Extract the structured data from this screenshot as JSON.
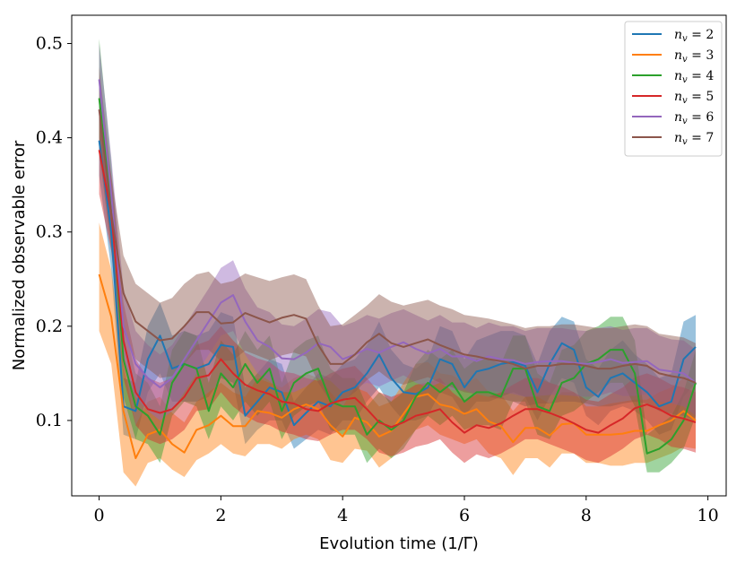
{
  "chart_data": {
    "type": "line",
    "xlabel": "Evolution time (1/Γ̅)",
    "ylabel": "Normalized observable error",
    "xlim": [
      -0.45,
      10.3
    ],
    "ylim": [
      0.02,
      0.53
    ],
    "xticks": [
      0,
      2,
      4,
      6,
      8,
      10
    ],
    "xtick_labels": [
      "0",
      "2",
      "4",
      "6",
      "8",
      "10"
    ],
    "yticks": [
      0.1,
      0.2,
      0.3,
      0.4,
      0.5
    ],
    "ytick_labels": [
      "0.1",
      "0.2",
      "0.3",
      "0.4",
      "0.5"
    ],
    "grid": false,
    "legend_position": "top-right",
    "x": [
      0,
      0.2,
      0.4,
      0.6,
      0.8,
      1.0,
      1.2,
      1.4,
      1.6,
      1.8,
      2.0,
      2.2,
      2.4,
      2.6,
      2.8,
      3.0,
      3.2,
      3.4,
      3.6,
      3.8,
      4.0,
      4.2,
      4.4,
      4.6,
      4.8,
      5.0,
      5.2,
      5.4,
      5.6,
      5.8,
      6.0,
      6.2,
      6.4,
      6.6,
      6.8,
      7.0,
      7.2,
      7.4,
      7.6,
      7.8,
      8.0,
      8.2,
      8.4,
      8.6,
      8.8,
      9.0,
      9.2,
      9.4,
      9.6,
      9.8
    ],
    "series": [
      {
        "name": "n",
        "name_sub": "v",
        "name_suffix": " = 2",
        "color": "#1f77b4",
        "values": [
          0.397,
          0.3,
          0.115,
          0.11,
          0.165,
          0.19,
          0.155,
          0.16,
          0.155,
          0.16,
          0.18,
          0.178,
          0.105,
          0.12,
          0.135,
          0.13,
          0.095,
          0.108,
          0.12,
          0.115,
          0.13,
          0.135,
          0.15,
          0.17,
          0.145,
          0.13,
          0.128,
          0.135,
          0.165,
          0.16,
          0.135,
          0.152,
          0.155,
          0.16,
          0.162,
          0.158,
          0.13,
          0.16,
          0.182,
          0.175,
          0.135,
          0.125,
          0.145,
          0.15,
          0.14,
          0.13,
          0.115,
          0.12,
          0.165,
          0.178
        ],
        "lower": [
          0.36,
          0.26,
          0.085,
          0.08,
          0.13,
          0.15,
          0.12,
          0.12,
          0.12,
          0.125,
          0.145,
          0.14,
          0.075,
          0.09,
          0.1,
          0.1,
          0.07,
          0.08,
          0.09,
          0.085,
          0.1,
          0.1,
          0.12,
          0.135,
          0.115,
          0.1,
          0.1,
          0.105,
          0.13,
          0.125,
          0.105,
          0.12,
          0.12,
          0.125,
          0.13,
          0.125,
          0.1,
          0.125,
          0.145,
          0.14,
          0.105,
          0.095,
          0.11,
          0.115,
          0.11,
          0.1,
          0.085,
          0.09,
          0.125,
          0.14
        ],
        "upper": [
          0.43,
          0.33,
          0.145,
          0.14,
          0.2,
          0.225,
          0.19,
          0.195,
          0.19,
          0.195,
          0.215,
          0.21,
          0.135,
          0.15,
          0.165,
          0.16,
          0.12,
          0.135,
          0.15,
          0.145,
          0.16,
          0.165,
          0.18,
          0.205,
          0.175,
          0.16,
          0.155,
          0.165,
          0.2,
          0.195,
          0.165,
          0.185,
          0.19,
          0.195,
          0.195,
          0.19,
          0.16,
          0.195,
          0.21,
          0.205,
          0.165,
          0.155,
          0.175,
          0.185,
          0.17,
          0.16,
          0.145,
          0.15,
          0.205,
          0.212
        ]
      },
      {
        "name": "n",
        "name_sub": "v",
        "name_suffix": " = 3",
        "color": "#ff7f0e",
        "values": [
          0.255,
          0.21,
          0.11,
          0.06,
          0.085,
          0.09,
          0.075,
          0.066,
          0.09,
          0.095,
          0.105,
          0.094,
          0.094,
          0.11,
          0.108,
          0.103,
          0.112,
          0.117,
          0.112,
          0.095,
          0.083,
          0.103,
          0.098,
          0.083,
          0.089,
          0.107,
          0.125,
          0.128,
          0.117,
          0.114,
          0.107,
          0.112,
          0.099,
          0.094,
          0.077,
          0.092,
          0.092,
          0.084,
          0.096,
          0.097,
          0.085,
          0.085,
          0.085,
          0.086,
          0.089,
          0.089,
          0.095,
          0.1,
          0.11,
          0.1
        ],
        "lower": [
          0.195,
          0.16,
          0.045,
          0.03,
          0.055,
          0.06,
          0.048,
          0.04,
          0.058,
          0.065,
          0.075,
          0.065,
          0.062,
          0.075,
          0.075,
          0.07,
          0.08,
          0.085,
          0.08,
          0.058,
          0.055,
          0.07,
          0.068,
          0.05,
          0.06,
          0.075,
          0.09,
          0.095,
          0.085,
          0.08,
          0.075,
          0.08,
          0.065,
          0.06,
          0.042,
          0.06,
          0.06,
          0.05,
          0.065,
          0.065,
          0.055,
          0.055,
          0.052,
          0.052,
          0.055,
          0.055,
          0.06,
          0.065,
          0.072,
          0.07
        ],
        "upper": [
          0.31,
          0.26,
          0.16,
          0.095,
          0.12,
          0.125,
          0.108,
          0.098,
          0.12,
          0.13,
          0.14,
          0.13,
          0.125,
          0.145,
          0.14,
          0.135,
          0.145,
          0.15,
          0.145,
          0.13,
          0.115,
          0.135,
          0.13,
          0.115,
          0.12,
          0.14,
          0.16,
          0.162,
          0.15,
          0.148,
          0.14,
          0.145,
          0.13,
          0.128,
          0.11,
          0.125,
          0.125,
          0.118,
          0.13,
          0.13,
          0.115,
          0.115,
          0.118,
          0.12,
          0.122,
          0.122,
          0.13,
          0.135,
          0.145,
          0.135
        ]
      },
      {
        "name": "n",
        "name_sub": "v",
        "name_suffix": " = 4",
        "color": "#2ca02c",
        "values": [
          0.442,
          0.33,
          0.165,
          0.115,
          0.105,
          0.085,
          0.14,
          0.16,
          0.155,
          0.11,
          0.15,
          0.135,
          0.16,
          0.14,
          0.155,
          0.11,
          0.14,
          0.15,
          0.155,
          0.12,
          0.115,
          0.115,
          0.085,
          0.1,
          0.09,
          0.1,
          0.125,
          0.14,
          0.13,
          0.14,
          0.12,
          0.13,
          0.13,
          0.125,
          0.155,
          0.155,
          0.115,
          0.11,
          0.14,
          0.145,
          0.16,
          0.165,
          0.175,
          0.175,
          0.15,
          0.065,
          0.07,
          0.08,
          0.1,
          0.14
        ],
        "lower": [
          0.4,
          0.29,
          0.125,
          0.08,
          0.075,
          0.055,
          0.105,
          0.12,
          0.115,
          0.08,
          0.115,
          0.1,
          0.12,
          0.105,
          0.12,
          0.08,
          0.105,
          0.115,
          0.12,
          0.09,
          0.085,
          0.085,
          0.055,
          0.07,
          0.06,
          0.07,
          0.09,
          0.105,
          0.095,
          0.105,
          0.09,
          0.095,
          0.095,
          0.09,
          0.12,
          0.12,
          0.085,
          0.08,
          0.105,
          0.11,
          0.12,
          0.13,
          0.14,
          0.14,
          0.115,
          0.045,
          0.045,
          0.055,
          0.07,
          0.105
        ],
        "upper": [
          0.505,
          0.375,
          0.205,
          0.15,
          0.14,
          0.115,
          0.175,
          0.195,
          0.19,
          0.14,
          0.185,
          0.17,
          0.195,
          0.175,
          0.19,
          0.14,
          0.175,
          0.185,
          0.19,
          0.155,
          0.145,
          0.145,
          0.115,
          0.13,
          0.12,
          0.13,
          0.16,
          0.175,
          0.165,
          0.175,
          0.155,
          0.165,
          0.165,
          0.16,
          0.19,
          0.19,
          0.15,
          0.14,
          0.175,
          0.18,
          0.195,
          0.2,
          0.21,
          0.21,
          0.185,
          0.085,
          0.095,
          0.105,
          0.13,
          0.175
        ]
      },
      {
        "name": "n",
        "name_sub": "v",
        "name_suffix": " = 5",
        "color": "#d62728",
        "values": [
          0.387,
          0.32,
          0.185,
          0.13,
          0.112,
          0.108,
          0.112,
          0.125,
          0.145,
          0.148,
          0.165,
          0.15,
          0.138,
          0.132,
          0.128,
          0.12,
          0.118,
          0.112,
          0.11,
          0.118,
          0.122,
          0.124,
          0.112,
          0.098,
          0.093,
          0.098,
          0.105,
          0.108,
          0.112,
          0.098,
          0.087,
          0.095,
          0.092,
          0.097,
          0.105,
          0.112,
          0.112,
          0.108,
          0.103,
          0.097,
          0.09,
          0.087,
          0.095,
          0.102,
          0.113,
          0.117,
          0.112,
          0.105,
          0.102,
          0.098
        ],
        "lower": [
          0.34,
          0.28,
          0.145,
          0.095,
          0.08,
          0.075,
          0.08,
          0.09,
          0.11,
          0.112,
          0.13,
          0.115,
          0.105,
          0.098,
          0.095,
          0.088,
          0.085,
          0.08,
          0.078,
          0.085,
          0.09,
          0.09,
          0.08,
          0.066,
          0.062,
          0.066,
          0.072,
          0.075,
          0.08,
          0.066,
          0.055,
          0.064,
          0.06,
          0.065,
          0.072,
          0.08,
          0.08,
          0.075,
          0.07,
          0.065,
          0.058,
          0.055,
          0.062,
          0.07,
          0.08,
          0.085,
          0.08,
          0.072,
          0.07,
          0.066
        ],
        "upper": [
          0.43,
          0.36,
          0.225,
          0.165,
          0.145,
          0.14,
          0.145,
          0.16,
          0.18,
          0.185,
          0.2,
          0.185,
          0.172,
          0.166,
          0.162,
          0.152,
          0.15,
          0.145,
          0.142,
          0.15,
          0.155,
          0.158,
          0.145,
          0.13,
          0.125,
          0.13,
          0.138,
          0.14,
          0.145,
          0.13,
          0.12,
          0.128,
          0.125,
          0.13,
          0.138,
          0.145,
          0.145,
          0.14,
          0.136,
          0.13,
          0.122,
          0.12,
          0.128,
          0.135,
          0.146,
          0.15,
          0.145,
          0.138,
          0.135,
          0.13
        ]
      },
      {
        "name": "n",
        "name_sub": "v",
        "name_suffix": " = 6",
        "color": "#9467bd",
        "values": [
          0.462,
          0.34,
          0.2,
          0.16,
          0.145,
          0.135,
          0.145,
          0.165,
          0.185,
          0.205,
          0.225,
          0.233,
          0.205,
          0.185,
          0.178,
          0.166,
          0.165,
          0.172,
          0.182,
          0.178,
          0.165,
          0.17,
          0.176,
          0.172,
          0.178,
          0.183,
          0.176,
          0.171,
          0.176,
          0.168,
          0.168,
          0.163,
          0.168,
          0.165,
          0.164,
          0.16,
          0.162,
          0.163,
          0.163,
          0.161,
          0.16,
          0.162,
          0.165,
          0.161,
          0.162,
          0.163,
          0.154,
          0.152,
          0.15,
          0.14
        ],
        "lower": [
          0.42,
          0.3,
          0.16,
          0.125,
          0.11,
          0.1,
          0.11,
          0.13,
          0.15,
          0.17,
          0.19,
          0.195,
          0.17,
          0.15,
          0.142,
          0.13,
          0.13,
          0.136,
          0.146,
          0.142,
          0.13,
          0.135,
          0.14,
          0.136,
          0.142,
          0.148,
          0.14,
          0.135,
          0.14,
          0.132,
          0.132,
          0.128,
          0.132,
          0.13,
          0.128,
          0.125,
          0.126,
          0.127,
          0.127,
          0.126,
          0.125,
          0.126,
          0.13,
          0.126,
          0.126,
          0.128,
          0.12,
          0.118,
          0.115,
          0.105
        ],
        "upper": [
          0.5,
          0.38,
          0.24,
          0.195,
          0.18,
          0.17,
          0.18,
          0.2,
          0.22,
          0.24,
          0.262,
          0.27,
          0.24,
          0.22,
          0.215,
          0.202,
          0.2,
          0.208,
          0.218,
          0.215,
          0.2,
          0.205,
          0.212,
          0.208,
          0.214,
          0.218,
          0.212,
          0.206,
          0.212,
          0.204,
          0.204,
          0.198,
          0.204,
          0.2,
          0.2,
          0.195,
          0.198,
          0.198,
          0.198,
          0.196,
          0.195,
          0.198,
          0.2,
          0.196,
          0.198,
          0.198,
          0.19,
          0.186,
          0.185,
          0.175
        ]
      },
      {
        "name": "n",
        "name_sub": "v",
        "name_suffix": " = 7",
        "color": "#8c564b",
        "values": [
          0.43,
          0.32,
          0.235,
          0.205,
          0.195,
          0.185,
          0.187,
          0.2,
          0.215,
          0.215,
          0.203,
          0.204,
          0.214,
          0.209,
          0.204,
          0.209,
          0.212,
          0.208,
          0.18,
          0.16,
          0.16,
          0.17,
          0.183,
          0.192,
          0.182,
          0.178,
          0.182,
          0.186,
          0.18,
          0.175,
          0.17,
          0.168,
          0.165,
          0.163,
          0.16,
          0.155,
          0.158,
          0.158,
          0.16,
          0.16,
          0.158,
          0.155,
          0.155,
          0.158,
          0.16,
          0.158,
          0.15,
          0.147,
          0.145,
          0.14
        ],
        "lower": [
          0.385,
          0.28,
          0.195,
          0.165,
          0.155,
          0.145,
          0.147,
          0.16,
          0.175,
          0.175,
          0.163,
          0.164,
          0.174,
          0.169,
          0.164,
          0.169,
          0.172,
          0.168,
          0.14,
          0.12,
          0.12,
          0.13,
          0.143,
          0.152,
          0.142,
          0.138,
          0.142,
          0.146,
          0.14,
          0.135,
          0.13,
          0.128,
          0.125,
          0.123,
          0.12,
          0.115,
          0.118,
          0.118,
          0.12,
          0.12,
          0.118,
          0.115,
          0.115,
          0.118,
          0.12,
          0.118,
          0.11,
          0.107,
          0.105,
          0.1
        ],
        "upper": [
          0.475,
          0.36,
          0.275,
          0.245,
          0.235,
          0.225,
          0.23,
          0.245,
          0.255,
          0.258,
          0.245,
          0.248,
          0.256,
          0.252,
          0.248,
          0.252,
          0.255,
          0.25,
          0.222,
          0.2,
          0.202,
          0.212,
          0.222,
          0.234,
          0.226,
          0.222,
          0.225,
          0.228,
          0.222,
          0.218,
          0.212,
          0.21,
          0.208,
          0.205,
          0.202,
          0.198,
          0.2,
          0.2,
          0.202,
          0.202,
          0.2,
          0.198,
          0.198,
          0.2,
          0.202,
          0.2,
          0.192,
          0.19,
          0.188,
          0.182
        ]
      }
    ]
  }
}
